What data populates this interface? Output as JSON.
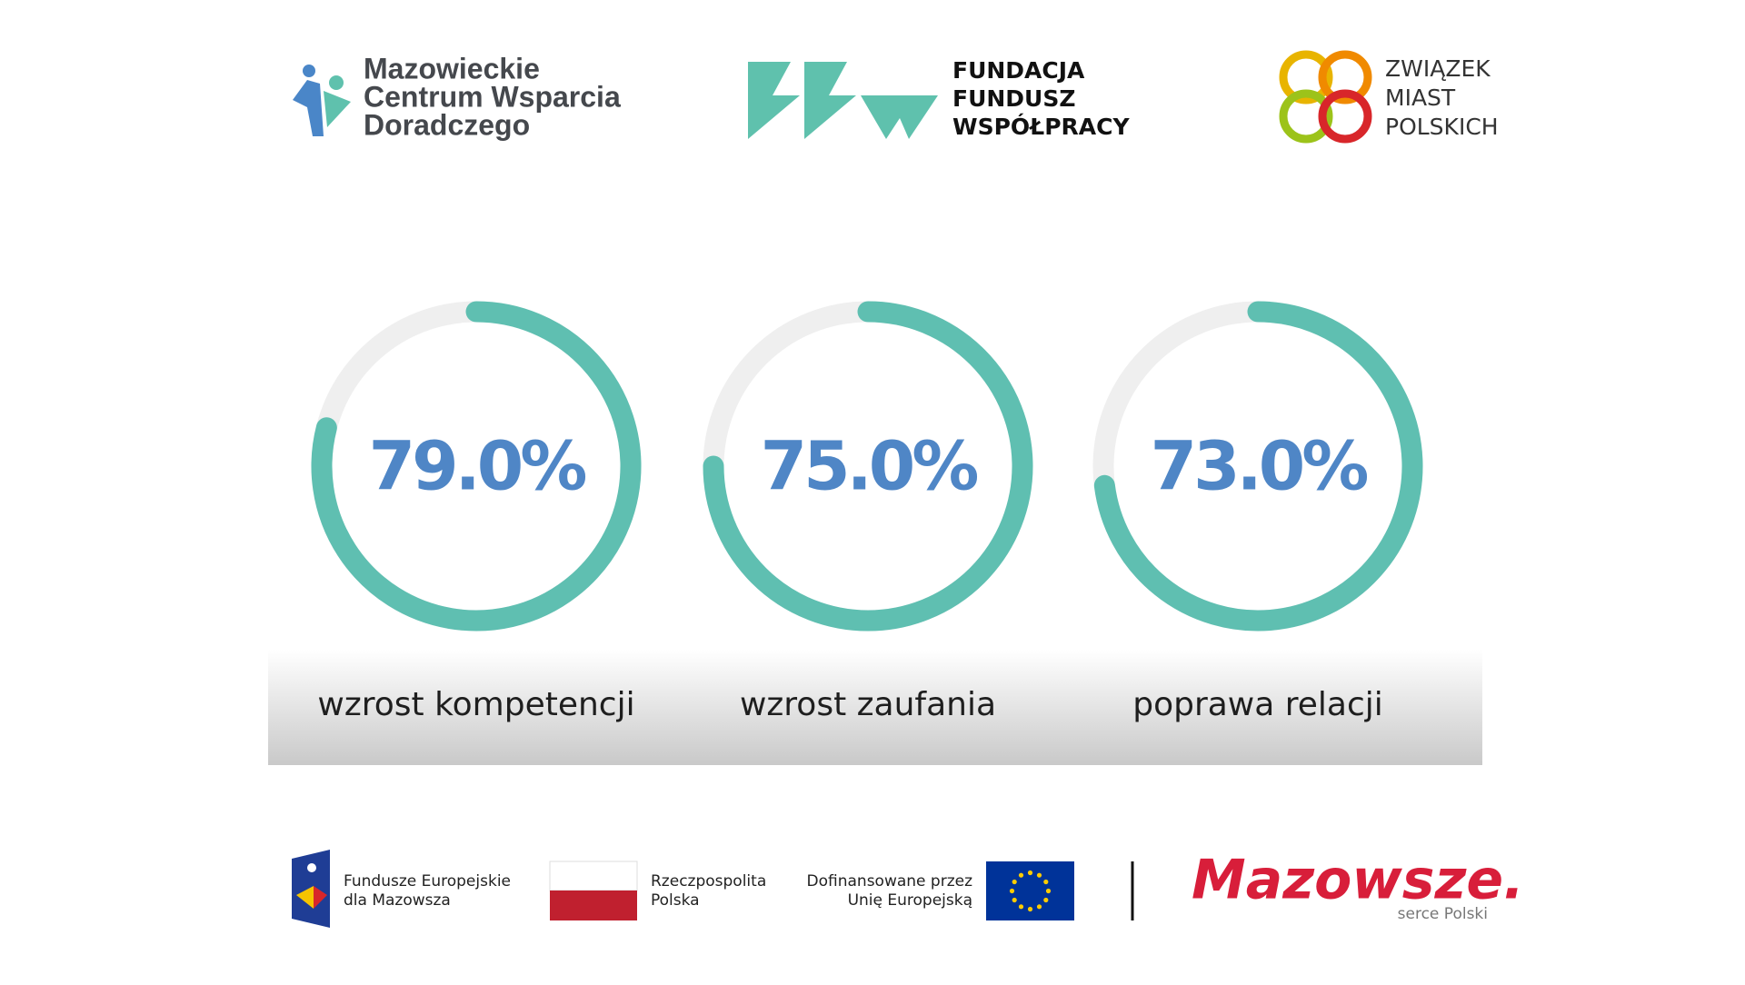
{
  "header": {
    "mcwd": [
      "Mazowieckie",
      "Centrum Wsparcia",
      "Doradczego"
    ],
    "ffw": [
      "FUNDACJA",
      "FUNDUSZ",
      "WSPÓŁPRACY"
    ],
    "zmp": [
      "ZWIĄZEK",
      "MIAST",
      "POLSKICH"
    ]
  },
  "chart_data": [
    {
      "type": "gauge",
      "categories": [
        "wzrost kompetencji"
      ],
      "values": [
        79
      ],
      "value_labels": [
        "79.0%"
      ],
      "ylim": [
        0,
        100
      ],
      "color": "#5fbfb1",
      "track_color": "#efefef",
      "label_color": "#4f86c6"
    },
    {
      "type": "gauge",
      "categories": [
        "wzrost zaufania"
      ],
      "values": [
        75
      ],
      "value_labels": [
        "75.0%"
      ],
      "ylim": [
        0,
        100
      ],
      "color": "#5fbfb1",
      "track_color": "#efefef",
      "label_color": "#4f86c6"
    },
    {
      "type": "gauge",
      "categories": [
        "poprawa relacji"
      ],
      "values": [
        73
      ],
      "value_labels": [
        "73.0%"
      ],
      "ylim": [
        0,
        100
      ],
      "color": "#5fbfb1",
      "track_color": "#efefef",
      "label_color": "#4f86c6"
    }
  ],
  "footer": {
    "fem": [
      "Fundusze Europejskie",
      "dla Mazowsza"
    ],
    "rp": [
      "Rzeczpospolita",
      "Polska"
    ],
    "ue": [
      "Dofinansowane przez",
      "Unię Europejską"
    ],
    "mazowsze": "Mazowsze.",
    "serce": "serce Polski"
  }
}
